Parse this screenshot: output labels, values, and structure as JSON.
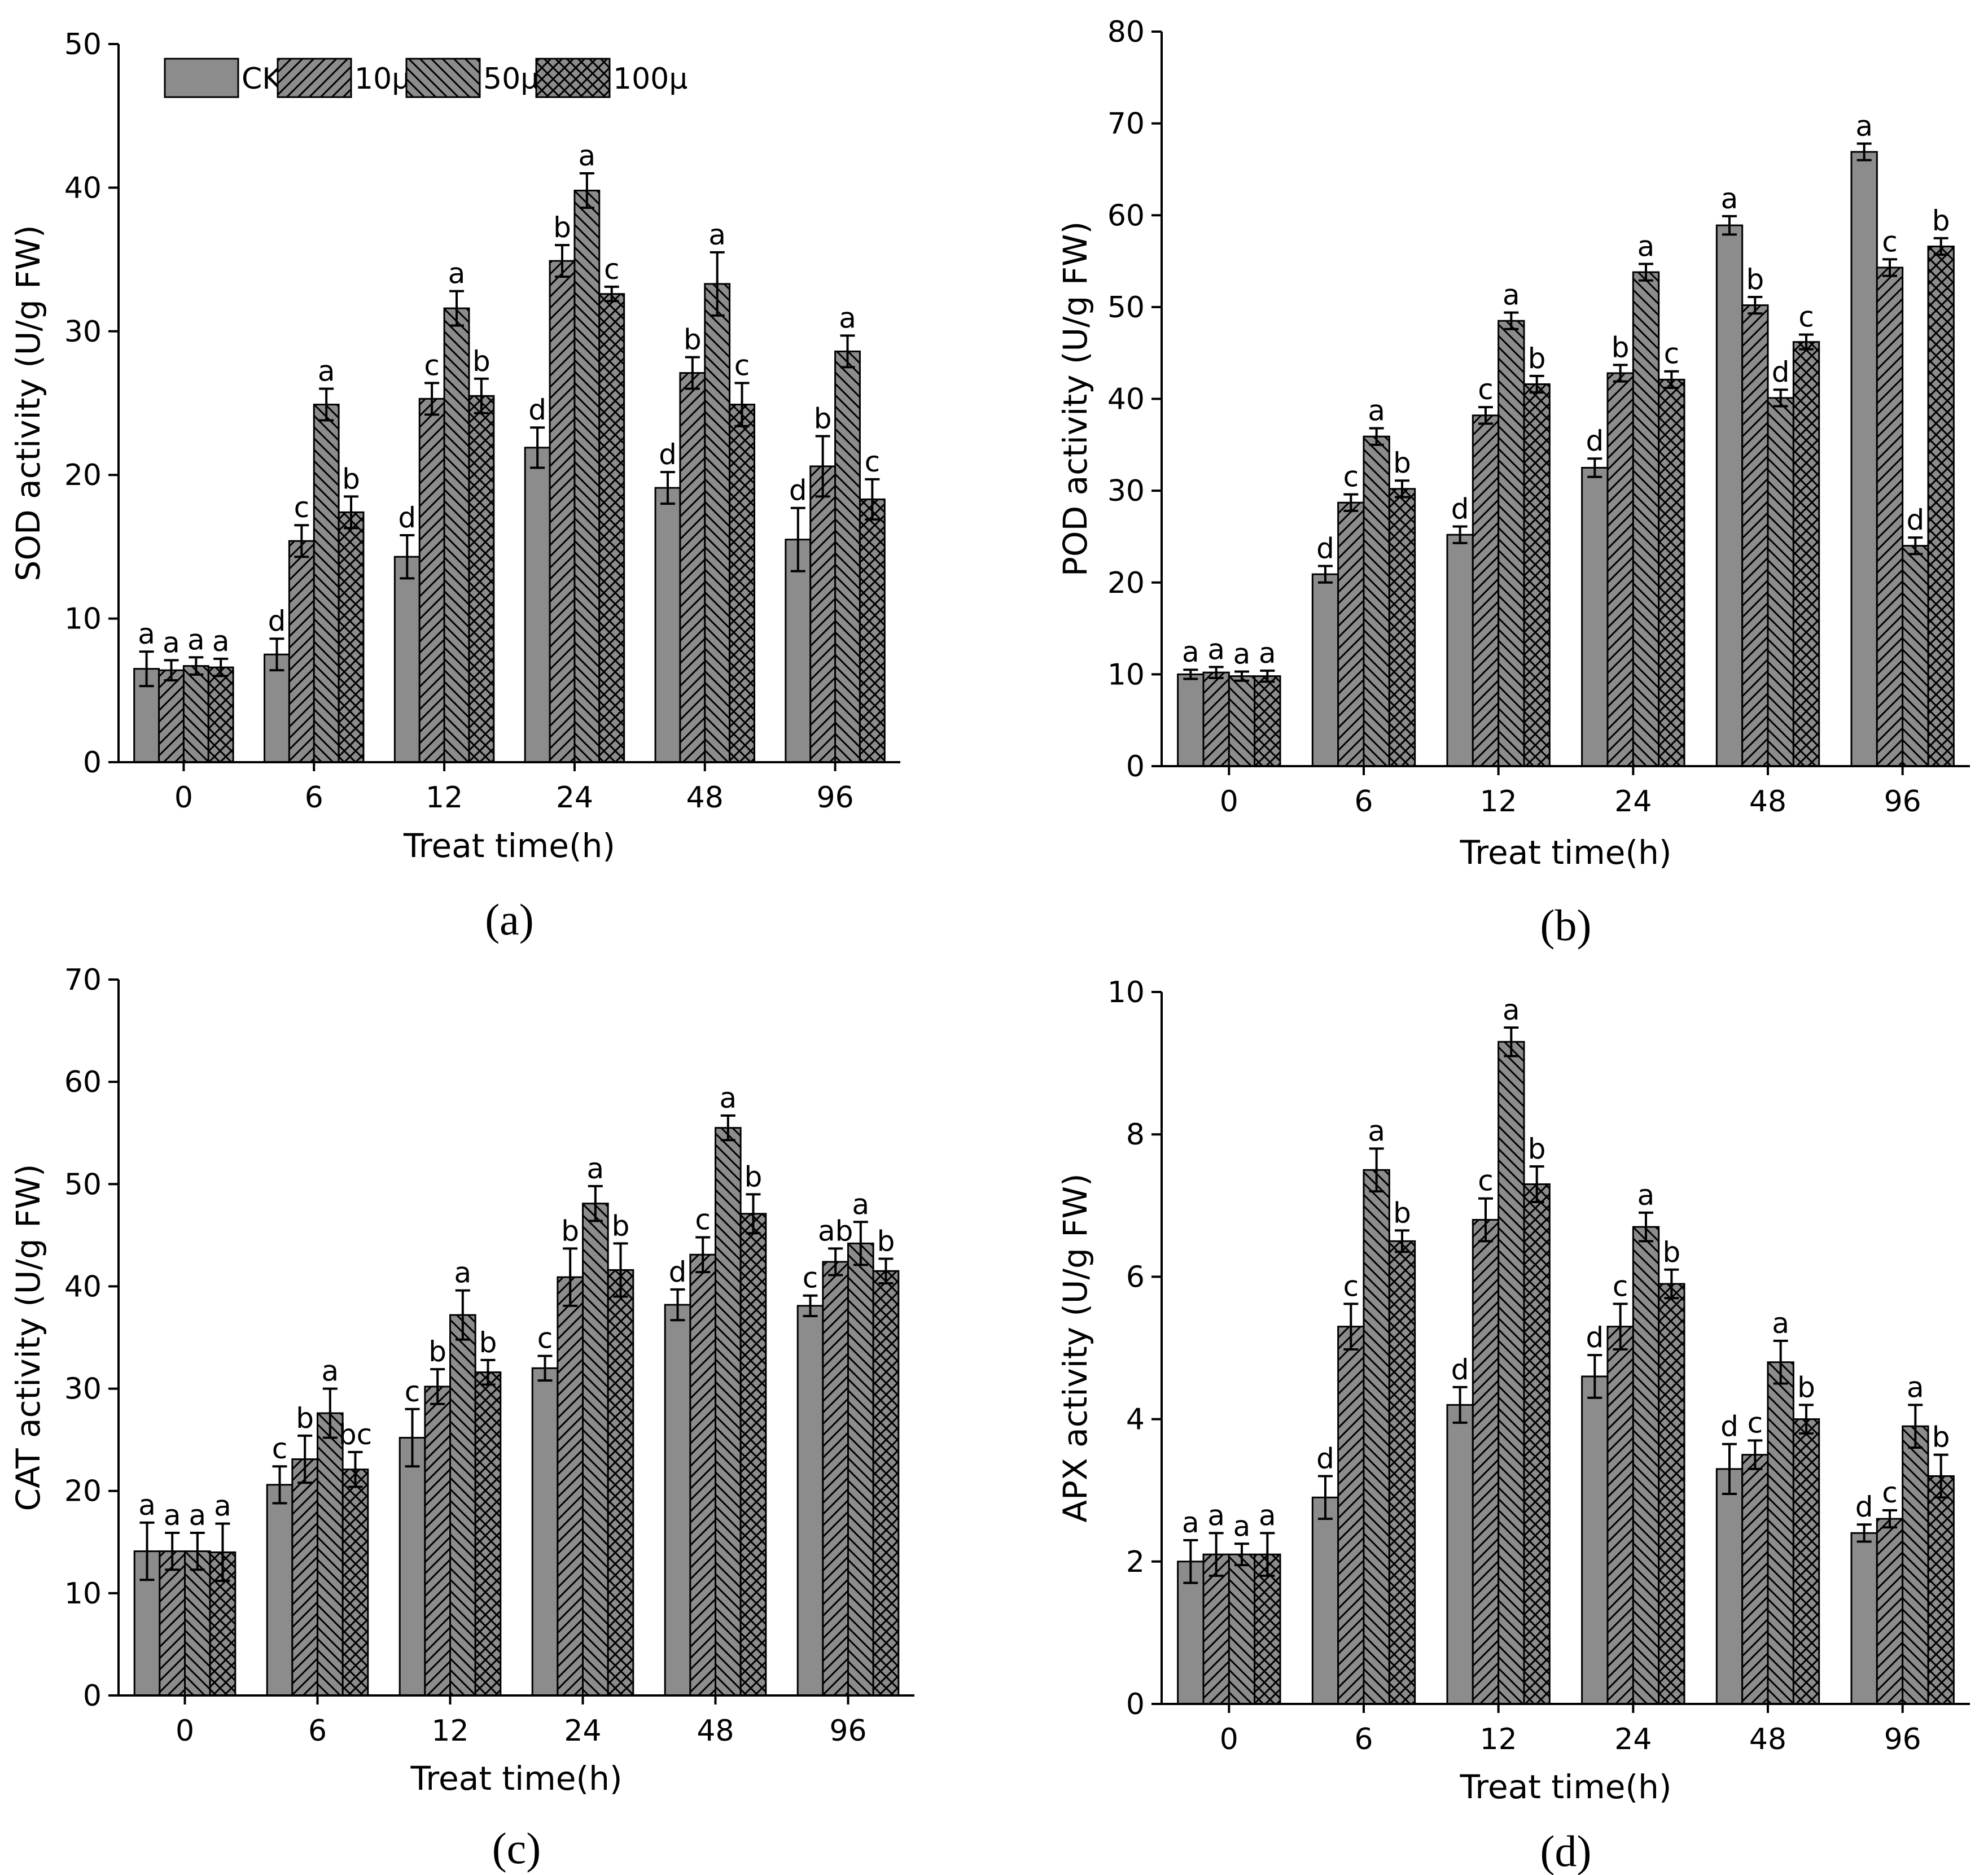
{
  "colors": {
    "bar_fill": "#8c8c8c",
    "stroke": "#000000",
    "background": "#ffffff"
  },
  "legend": {
    "entries": [
      {
        "label": "CK",
        "pattern": "solid"
      },
      {
        "label": "10μ",
        "pattern": "diagonal-forward"
      },
      {
        "label": "50μ",
        "pattern": "diagonal-back"
      },
      {
        "label": "100μ",
        "pattern": "crosshatch"
      }
    ]
  },
  "chart_data": [
    {
      "id": "a",
      "panel_label": "(a)",
      "type": "bar",
      "ylabel": "SOD activity (U/g FW)",
      "xlabel": "Treat time(h)",
      "ylim": [
        0,
        50
      ],
      "ytick_step": 10,
      "categories": [
        "0",
        "6",
        "12",
        "24",
        "48",
        "96"
      ],
      "series": [
        {
          "name": "CK",
          "values": [
            6.5,
            7.5,
            14.3,
            21.9,
            19.1,
            15.5
          ],
          "errors": [
            1.2,
            1.1,
            1.5,
            1.4,
            1.1,
            2.2
          ],
          "letters": [
            "a",
            "d",
            "d",
            "d",
            "d",
            "d"
          ]
        },
        {
          "name": "10μ",
          "values": [
            6.4,
            15.4,
            25.3,
            34.9,
            27.1,
            20.6
          ],
          "errors": [
            0.7,
            1.1,
            1.1,
            1.1,
            1.1,
            2.1
          ],
          "letters": [
            "a",
            "c",
            "c",
            "b",
            "b",
            "b"
          ]
        },
        {
          "name": "50μ",
          "values": [
            6.7,
            24.9,
            31.6,
            39.8,
            33.3,
            28.6
          ],
          "errors": [
            0.6,
            1.1,
            1.2,
            1.2,
            2.2,
            1.1
          ],
          "letters": [
            "a",
            "a",
            "a",
            "a",
            "a",
            "a"
          ]
        },
        {
          "name": "100μ",
          "values": [
            6.6,
            17.4,
            25.5,
            32.6,
            24.9,
            18.3
          ],
          "errors": [
            0.6,
            1.1,
            1.2,
            0.5,
            1.5,
            1.4
          ],
          "letters": [
            "a",
            "b",
            "b",
            "c",
            "c",
            "c"
          ]
        }
      ]
    },
    {
      "id": "b",
      "panel_label": "(b)",
      "type": "bar",
      "ylabel": "POD activity (U/g FW)",
      "xlabel": "Treat time(h)",
      "ylim": [
        0,
        80
      ],
      "ytick_step": 10,
      "categories": [
        "0",
        "6",
        "12",
        "24",
        "48",
        "96"
      ],
      "series": [
        {
          "name": "CK",
          "values": [
            10.0,
            20.9,
            25.2,
            32.5,
            58.9,
            66.9
          ],
          "errors": [
            0.5,
            0.9,
            0.9,
            1.0,
            1.0,
            0.9
          ],
          "letters": [
            "a",
            "d",
            "d",
            "d",
            "a",
            "a"
          ]
        },
        {
          "name": "10μ",
          "values": [
            10.2,
            28.7,
            38.2,
            42.8,
            50.2,
            54.3
          ],
          "errors": [
            0.6,
            0.9,
            0.9,
            0.9,
            0.9,
            0.9
          ],
          "letters": [
            "a",
            "c",
            "c",
            "b",
            "b",
            "c"
          ]
        },
        {
          "name": "50μ",
          "values": [
            9.8,
            35.9,
            48.5,
            53.8,
            40.1,
            24.0
          ],
          "errors": [
            0.5,
            0.9,
            0.9,
            0.9,
            0.9,
            0.9
          ],
          "letters": [
            "a",
            "a",
            "a",
            "a",
            "d",
            "d"
          ]
        },
        {
          "name": "100μ",
          "values": [
            9.8,
            30.2,
            41.6,
            42.1,
            46.2,
            56.6
          ],
          "errors": [
            0.6,
            0.9,
            0.9,
            0.9,
            0.8,
            0.9
          ],
          "letters": [
            "a",
            "b",
            "b",
            "c",
            "c",
            "b"
          ]
        }
      ]
    },
    {
      "id": "c",
      "panel_label": "(c)",
      "type": "bar",
      "ylabel": "CAT activity (U/g FW)",
      "xlabel": "Treat time(h)",
      "ylim": [
        0,
        70
      ],
      "ytick_step": 10,
      "categories": [
        "0",
        "6",
        "12",
        "24",
        "48",
        "96"
      ],
      "series": [
        {
          "name": "CK",
          "values": [
            14.1,
            20.6,
            25.2,
            32.0,
            38.2,
            38.1
          ],
          "errors": [
            2.8,
            1.8,
            2.8,
            1.2,
            1.5,
            1.0
          ],
          "letters": [
            "a",
            "c",
            "c",
            "c",
            "d",
            "c"
          ]
        },
        {
          "name": "10μ",
          "values": [
            14.1,
            23.1,
            30.2,
            40.9,
            43.1,
            42.4
          ],
          "errors": [
            1.8,
            2.3,
            1.7,
            2.8,
            1.7,
            1.3
          ],
          "letters": [
            "a",
            "b",
            "b",
            "b",
            "c",
            "ab"
          ]
        },
        {
          "name": "50μ",
          "values": [
            14.1,
            27.6,
            37.2,
            48.1,
            55.5,
            44.2
          ],
          "errors": [
            1.8,
            2.4,
            2.4,
            1.7,
            1.2,
            2.1
          ],
          "letters": [
            "a",
            "a",
            "a",
            "a",
            "a",
            "a"
          ]
        },
        {
          "name": "100μ",
          "values": [
            14.0,
            22.1,
            31.6,
            41.6,
            47.1,
            41.5
          ],
          "errors": [
            2.8,
            1.7,
            1.2,
            2.6,
            1.9,
            1.2
          ],
          "letters": [
            "a",
            "bc",
            "b",
            "b",
            "b",
            "b"
          ]
        }
      ]
    },
    {
      "id": "d",
      "panel_label": "(d)",
      "type": "bar",
      "ylabel": "APX activity (U/g FW)",
      "xlabel": "Treat time(h)",
      "ylim": [
        0,
        10
      ],
      "ytick_step": 2,
      "categories": [
        "0",
        "6",
        "12",
        "24",
        "48",
        "96"
      ],
      "series": [
        {
          "name": "CK",
          "values": [
            2.0,
            2.9,
            4.2,
            4.6,
            3.3,
            2.4
          ],
          "errors": [
            0.3,
            0.3,
            0.25,
            0.3,
            0.35,
            0.12
          ],
          "letters": [
            "a",
            "d",
            "d",
            "d",
            "d",
            "d"
          ]
        },
        {
          "name": "10μ",
          "values": [
            2.1,
            5.3,
            6.8,
            5.3,
            3.5,
            2.6
          ],
          "errors": [
            0.3,
            0.32,
            0.3,
            0.32,
            0.2,
            0.12
          ],
          "letters": [
            "a",
            "c",
            "c",
            "c",
            "c",
            "c"
          ]
        },
        {
          "name": "50μ",
          "values": [
            2.1,
            7.5,
            9.3,
            6.7,
            4.8,
            3.9
          ],
          "errors": [
            0.15,
            0.3,
            0.2,
            0.2,
            0.3,
            0.3
          ],
          "letters": [
            "a",
            "a",
            "a",
            "a",
            "a",
            "a"
          ]
        },
        {
          "name": "100μ",
          "values": [
            2.1,
            6.5,
            7.3,
            5.9,
            4.0,
            3.2
          ],
          "errors": [
            0.3,
            0.15,
            0.25,
            0.2,
            0.2,
            0.3
          ],
          "letters": [
            "a",
            "b",
            "b",
            "b",
            "b",
            "b"
          ]
        }
      ]
    }
  ]
}
